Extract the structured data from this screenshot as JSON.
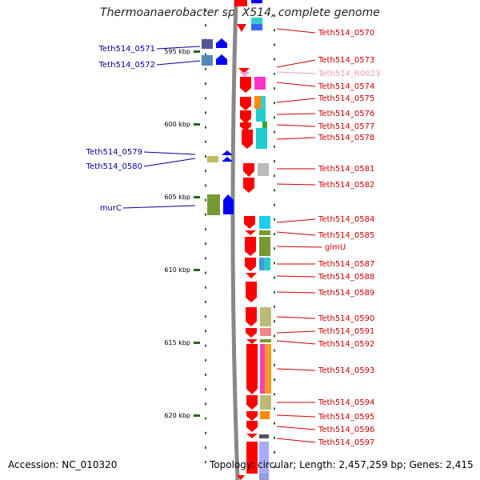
{
  "title": "Thermoanaerobacter sp. X514, complete genome",
  "footer": {
    "accession": "Accession: NC_010320",
    "topology": "Topology: circular; Length: 2,457,259 bp; Genes: 2,415"
  },
  "axis": {
    "ticks": [
      {
        "label": "595 kbp",
        "y": 64
      },
      {
        "label": "600 kbp",
        "y": 155
      },
      {
        "label": "605 kbp",
        "y": 246
      },
      {
        "label": "610 kbp",
        "y": 337
      },
      {
        "label": "615 kbp",
        "y": 428
      },
      {
        "label": "620 kbp",
        "y": 519
      }
    ]
  },
  "genes_left": [
    {
      "name": "Teth514_0571",
      "color": "#000099"
    },
    {
      "name": "Teth514_0572",
      "color": "#000099"
    },
    {
      "name": "Teth514_0579",
      "color": "#000099"
    },
    {
      "name": "Teth514_0580",
      "color": "#000099"
    },
    {
      "name": "murC",
      "color": "#000099"
    }
  ],
  "genes_right": [
    {
      "name": "Teth514_0570",
      "color": "#cc0000"
    },
    {
      "name": "Teth514_0573",
      "color": "#cc0000"
    },
    {
      "name": "Teth514_R0023",
      "color": "#ee99bb"
    },
    {
      "name": "Teth514_0574",
      "color": "#cc0000"
    },
    {
      "name": "Teth514_0575",
      "color": "#cc0000"
    },
    {
      "name": "Teth514_0576",
      "color": "#cc0000"
    },
    {
      "name": "Teth514_0577",
      "color": "#cc0000"
    },
    {
      "name": "Teth514_0578",
      "color": "#cc0000"
    },
    {
      "name": "Teth514_0581",
      "color": "#cc0000"
    },
    {
      "name": "Teth514_0582",
      "color": "#cc0000"
    },
    {
      "name": "Teth514_0584",
      "color": "#cc0000"
    },
    {
      "name": "Teth514_0585",
      "color": "#cc0000"
    },
    {
      "name": "glmU",
      "color": "#cc0000"
    },
    {
      "name": "Teth514_0587",
      "color": "#cc0000"
    },
    {
      "name": "Teth514_0588",
      "color": "#cc0000"
    },
    {
      "name": "Teth514_0589",
      "color": "#cc0000"
    },
    {
      "name": "Teth514_0590",
      "color": "#cc0000"
    },
    {
      "name": "Teth514_0591",
      "color": "#cc0000"
    },
    {
      "name": "Teth514_0592",
      "color": "#cc0000"
    },
    {
      "name": "Teth514_0593",
      "color": "#cc0000"
    },
    {
      "name": "Teth514_0594",
      "color": "#cc0000"
    },
    {
      "name": "Teth514_0595",
      "color": "#cc0000"
    },
    {
      "name": "Teth514_0596",
      "color": "#cc0000"
    },
    {
      "name": "Teth514_0597",
      "color": "#cc0000"
    }
  ]
}
